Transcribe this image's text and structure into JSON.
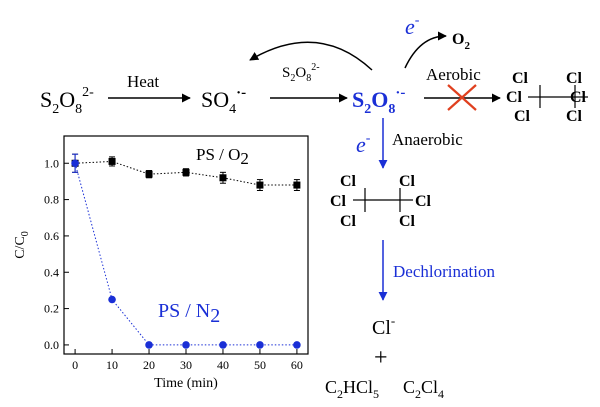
{
  "scheme": {
    "persulfate": {
      "base": "S",
      "sub1": "2",
      "mid": "O",
      "sub2": "8",
      "sup": "2-"
    },
    "heat_label": "Heat",
    "sulfate_radical": {
      "base": "SO",
      "sub": "4",
      "sup": "·-"
    },
    "persulfate_reagent": {
      "base": "S",
      "sub1": "2",
      "mid": "O",
      "sub2": "8",
      "sup": "2-"
    },
    "persulfate_radical": {
      "base": "S",
      "sub1": "2",
      "mid": "O",
      "sub2": "8",
      "sup": "·-"
    },
    "electron_top": {
      "base": "e",
      "sup": "-"
    },
    "oxygen": {
      "base": "O",
      "sub": "2"
    },
    "aerobic_label": "Aerobic",
    "electron_mid": {
      "base": "e",
      "sup": "-"
    },
    "anaerobic_label": "Anaerobic",
    "cl": "Cl",
    "dechlorination_label": "Dechlorination",
    "chloride": {
      "base": "Cl",
      "sup": "-"
    },
    "plus": "+",
    "product_1": {
      "a": "C",
      "s1": "2",
      "b": "HCl",
      "s2": "5"
    },
    "product_2": {
      "a": "C",
      "s1": "2",
      "b": "Cl",
      "s2": "4"
    }
  },
  "colors": {
    "text": "#000000",
    "accent_blue": "#1a2fd6",
    "cross_red": "#e0401f"
  },
  "chart_data": {
    "type": "scatter",
    "xlabel": "Time (min)",
    "ylabel": {
      "base": "C/C",
      "sub": "0"
    },
    "xlim": [
      -3,
      63
    ],
    "ylim": [
      -0.05,
      1.15
    ],
    "xticks": [
      0,
      10,
      20,
      30,
      40,
      50,
      60
    ],
    "yticks": [
      0.0,
      0.2,
      0.4,
      0.6,
      0.8,
      1.0
    ],
    "ytick_labels": [
      "0.0",
      "0.2",
      "0.4",
      "0.6",
      "0.8",
      "1.0"
    ],
    "series": [
      {
        "name": {
          "base": "PS / O",
          "sub": "2"
        },
        "marker": "square",
        "color": "#000000",
        "x": [
          0,
          10,
          20,
          30,
          40,
          50,
          60
        ],
        "y": [
          1.0,
          1.01,
          0.94,
          0.95,
          0.92,
          0.88,
          0.88
        ],
        "err": [
          0.05,
          0.025,
          0.02,
          0.02,
          0.03,
          0.03,
          0.03
        ]
      },
      {
        "name": {
          "base": "PS / N",
          "sub": "2"
        },
        "marker": "circle",
        "color": "#1a2fd6",
        "x": [
          0,
          10,
          20,
          30,
          40,
          50,
          60
        ],
        "y": [
          1.0,
          0.25,
          0.0,
          0.0,
          0.0,
          0.0,
          0.0
        ],
        "err": [
          0.05,
          0,
          0,
          0,
          0,
          0,
          0
        ]
      }
    ]
  }
}
